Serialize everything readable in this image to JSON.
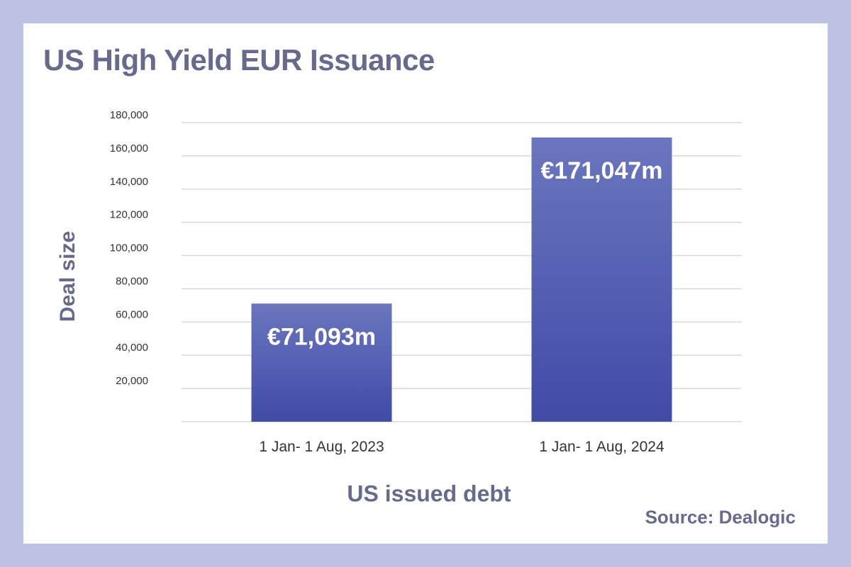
{
  "colors": {
    "frame": "#bcc3e3",
    "card": "#ffffff",
    "title_text": "#676a8c",
    "bar_top": "#6b76be",
    "bar_bottom": "#3f4ba7",
    "grid": "#d9d9d9",
    "tick_text": "#333333"
  },
  "chart_data": {
    "type": "bar",
    "title": "US High Yield EUR Issuance",
    "xlabel": "US issued debt",
    "ylabel": "Deal size",
    "source": "Source: Dealogic",
    "categories": [
      "1 Jan- 1 Aug, 2023",
      "1 Jan- 1 Aug, 2024"
    ],
    "values": [
      71093,
      171047
    ],
    "data_labels": [
      "€71,093m",
      "€171,047m"
    ],
    "ylim": [
      0,
      180000
    ],
    "yticks": [
      20000,
      40000,
      60000,
      80000,
      100000,
      120000,
      140000,
      160000,
      180000
    ],
    "ytick_labels": [
      "20,000",
      "40,000",
      "60,000",
      "80,000",
      "100,000",
      "120,000",
      "140,000",
      "160,000",
      "180,000"
    ],
    "grid": true,
    "legend": "none"
  }
}
